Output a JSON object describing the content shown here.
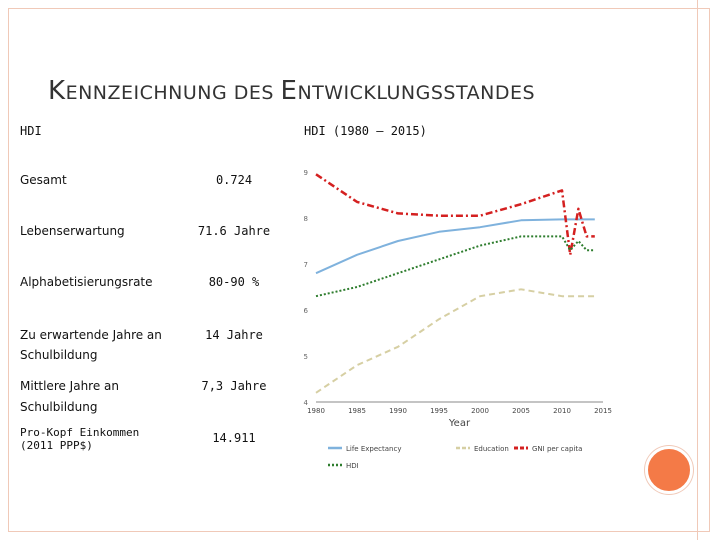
{
  "slide": {
    "title_parts": [
      {
        "text": "K",
        "size": "big"
      },
      {
        "text": "ENNZEICHNUNG DES ",
        "size": "small"
      },
      {
        "text": "E",
        "size": "big"
      },
      {
        "text": "NTWICKLUNGSSTANDES",
        "size": "small"
      }
    ],
    "header_left": "HDI",
    "header_right": "HDI (1980 – 2015)",
    "rows": [
      {
        "label": "Gesamt",
        "value": "0.724"
      },
      {
        "label": "Lebenserwartung",
        "value": "71.6 Jahre"
      },
      {
        "label": "Alphabetisierungsrate",
        "value": "80-90 %"
      },
      {
        "label": "Zu erwartende Jahre an",
        "label2": "Schulbildung",
        "value": "14 Jahre"
      },
      {
        "label": "Mittlere Jahre an",
        "label2": "Schulbildung",
        "value": "7,3 Jahre"
      },
      {
        "label": "Pro-Kopf Einkommen",
        "label2": "(2011 PPP$)",
        "value": "14.911"
      }
    ],
    "colors": {
      "border": "#f0c9b8",
      "accent_circle": "#f47a47"
    }
  },
  "chart_data": {
    "type": "line",
    "title": "",
    "xlabel": "Year",
    "ylabel": "",
    "xlim": [
      1980,
      2015
    ],
    "ylim": [
      4,
      9
    ],
    "x_ticks": [
      1980,
      1985,
      1990,
      1995,
      2000,
      2005,
      2010,
      2015
    ],
    "y_ticks": [
      4,
      5,
      6,
      7,
      8,
      9
    ],
    "grid": false,
    "legend": "bottom",
    "series": [
      {
        "name": "Life Expectancy",
        "color": "#7fb2dd",
        "style": "solid",
        "x": [
          1980,
          1985,
          1990,
          1995,
          2000,
          2005,
          2010,
          2011,
          2012,
          2013,
          2014
        ],
        "y": [
          6.8,
          7.2,
          7.5,
          7.7,
          7.8,
          7.95,
          7.97,
          7.97,
          7.97,
          7.97,
          7.97
        ]
      },
      {
        "name": "Education",
        "color": "#d6cfa3",
        "style": "dash",
        "x": [
          1980,
          1985,
          1990,
          1995,
          2000,
          2005,
          2010,
          2011,
          2012,
          2013,
          2014
        ],
        "y": [
          4.2,
          4.8,
          5.2,
          5.8,
          6.3,
          6.45,
          6.3,
          6.3,
          6.3,
          6.3,
          6.3
        ]
      },
      {
        "name": "GNI per capita",
        "color": "#d42020",
        "style": "dashdot",
        "x": [
          1980,
          1985,
          1990,
          1995,
          2000,
          2005,
          2010,
          2011,
          2012,
          2013,
          2014
        ],
        "y": [
          8.95,
          8.35,
          8.1,
          8.05,
          8.05,
          8.3,
          8.6,
          7.2,
          8.2,
          7.6,
          7.6
        ]
      },
      {
        "name": "HDI",
        "color": "#2e7d2e",
        "style": "dot",
        "x": [
          1980,
          1985,
          1990,
          1995,
          2000,
          2005,
          2010,
          2011,
          2012,
          2013,
          2014
        ],
        "y": [
          6.3,
          6.5,
          6.8,
          7.1,
          7.4,
          7.6,
          7.6,
          7.3,
          7.5,
          7.3,
          7.3
        ]
      }
    ]
  }
}
